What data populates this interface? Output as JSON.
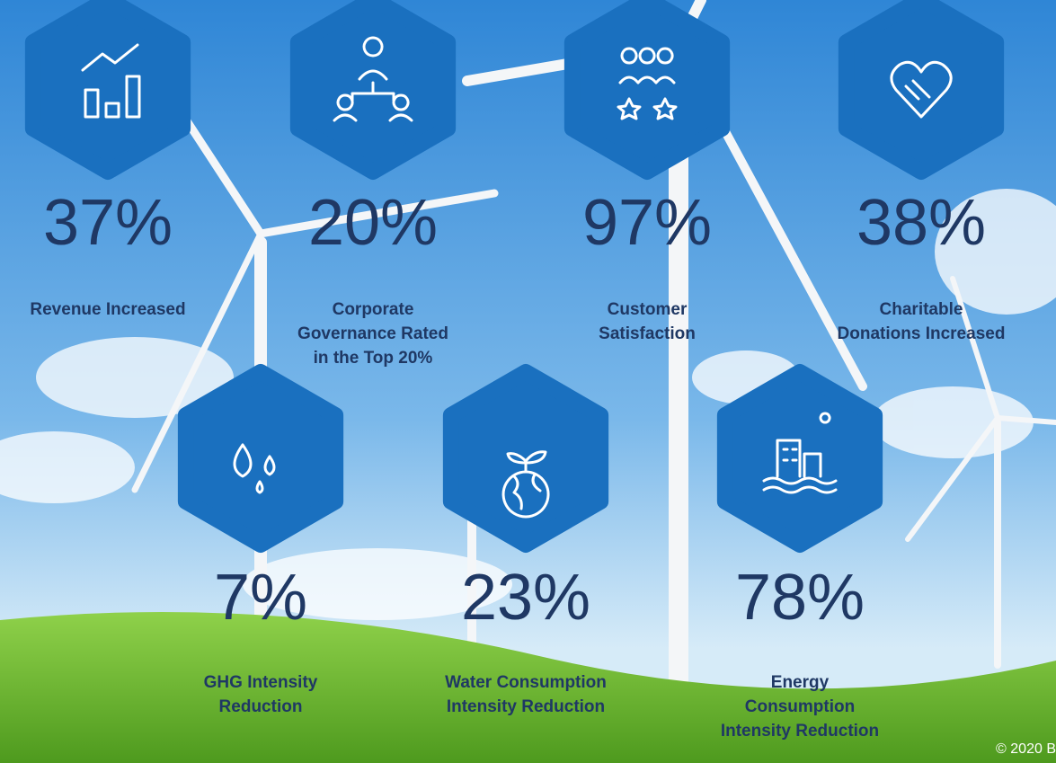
{
  "stats": [
    {
      "value": "37%",
      "label": [
        "Revenue Increased"
      ]
    },
    {
      "value": "20%",
      "label": [
        "Corporate",
        "Governance Rated",
        "in the Top 20%"
      ]
    },
    {
      "value": "97%",
      "label": [
        "Customer",
        "Satisfaction"
      ]
    },
    {
      "value": "38%",
      "label": [
        "Charitable",
        "Donations Increased"
      ]
    },
    {
      "value": "7%",
      "label": [
        "GHG Intensity",
        "Reduction"
      ]
    },
    {
      "value": "23%",
      "label": [
        "Water Consumption",
        "Intensity Reduction"
      ]
    },
    {
      "value": "78%",
      "label": [
        "Energy",
        "Consumption",
        "Intensity Reduction"
      ]
    }
  ],
  "footer": "© 2020 B"
}
